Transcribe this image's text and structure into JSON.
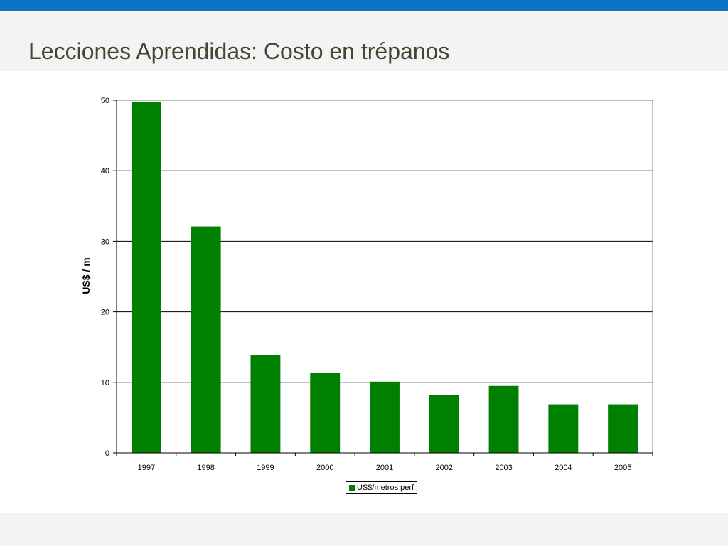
{
  "slide": {
    "title": "Lecciones Aprendidas: Costo en trépanos"
  },
  "colors": {
    "top_bar": "#0a73c6",
    "title_band": "#f3f3f3",
    "title_text": "#454530",
    "bar_fill": "#008000"
  },
  "chart_data": {
    "type": "bar",
    "categories": [
      "1997",
      "1998",
      "1999",
      "2000",
      "2001",
      "2002",
      "2003",
      "2004",
      "2005"
    ],
    "series": [
      {
        "name": "US$/metros perf",
        "values": [
          49.7,
          32.1,
          13.9,
          11.3,
          10.1,
          8.2,
          9.5,
          6.9,
          6.9
        ]
      }
    ],
    "title": "",
    "xlabel": "",
    "ylabel": "US$ / m",
    "ylim": [
      0,
      50
    ],
    "yticks": [
      "0",
      "10",
      "20",
      "30",
      "40",
      "50"
    ],
    "grid": true,
    "legend_position": "bottom"
  }
}
